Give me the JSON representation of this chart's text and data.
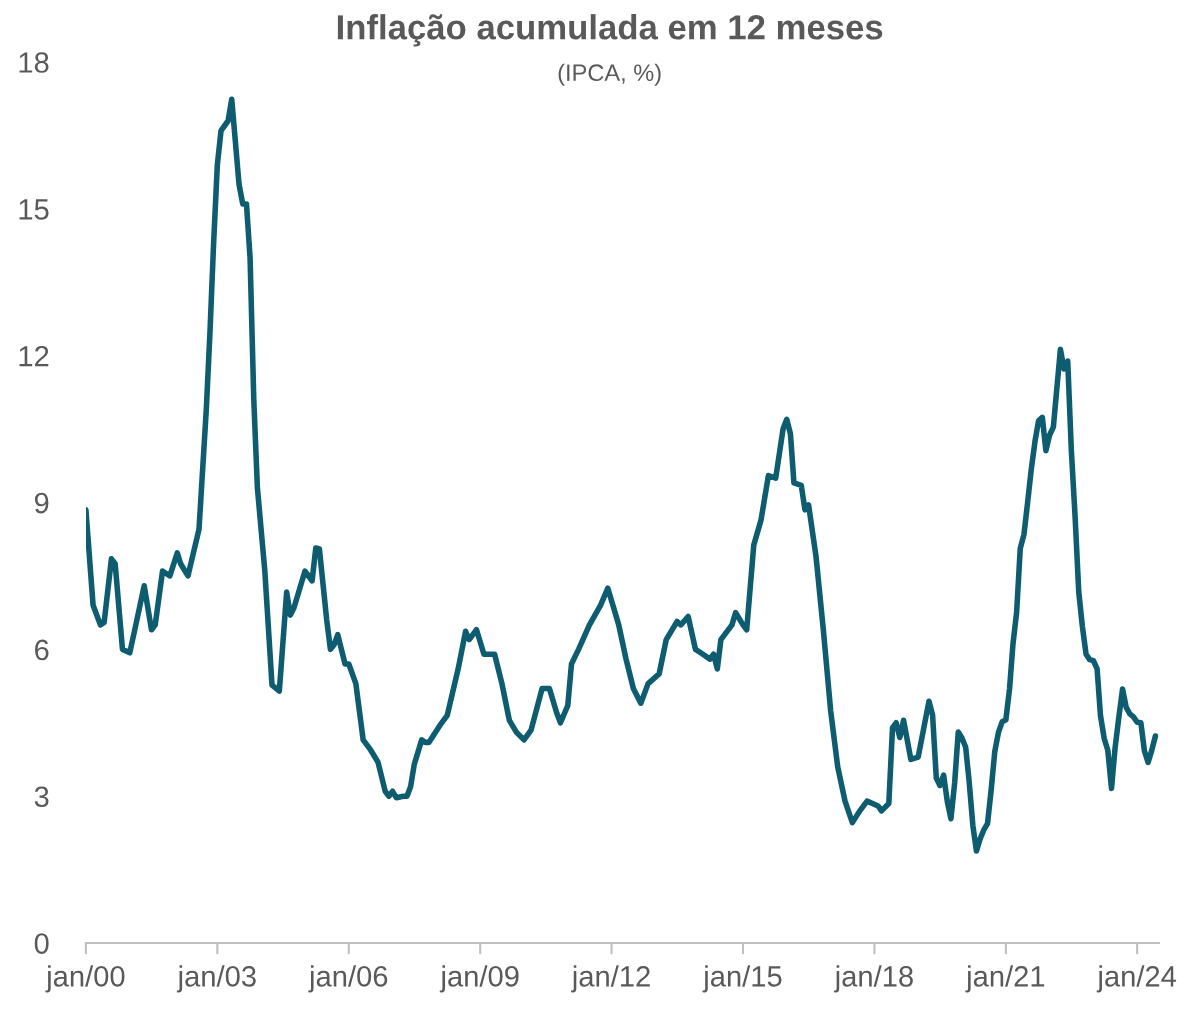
{
  "chart_data": {
    "type": "line",
    "title": "Inflação acumulada em 12 meses",
    "subtitle": "(IPCA, %)",
    "x": [
      "2000-01",
      "2000-03",
      "2000-05",
      "2000-06",
      "2000-08",
      "2000-09",
      "2000-11",
      "2001-01",
      "2001-03",
      "2001-05",
      "2001-07",
      "2001-08",
      "2001-10",
      "2001-12",
      "2002-02",
      "2002-03",
      "2002-05",
      "2002-08",
      "2002-10",
      "2002-11",
      "2002-12",
      "2003-01",
      "2003-02",
      "2003-04",
      "2003-05",
      "2003-07",
      "2003-08",
      "2003-09",
      "2003-10",
      "2003-11",
      "2003-12",
      "2004-02",
      "2004-04",
      "2004-06",
      "2004-08",
      "2004-09",
      "2004-10",
      "2005-01",
      "2005-03",
      "2005-04",
      "2005-05",
      "2005-07",
      "2005-08",
      "2005-09",
      "2005-10",
      "2005-12",
      "2006-01",
      "2006-03",
      "2006-05",
      "2006-07",
      "2006-09",
      "2006-11",
      "2006-12",
      "2007-01",
      "2007-02",
      "2007-04",
      "2007-05",
      "2007-06",
      "2007-07",
      "2007-09",
      "2007-10",
      "2007-11",
      "2008-02",
      "2008-04",
      "2008-07",
      "2008-09",
      "2008-10",
      "2008-12",
      "2009-02",
      "2009-03",
      "2009-05",
      "2009-07",
      "2009-09",
      "2009-11",
      "2010-01",
      "2010-03",
      "2010-06",
      "2010-08",
      "2010-10",
      "2010-11",
      "2011-01",
      "2011-02",
      "2011-04",
      "2011-07",
      "2011-10",
      "2011-12",
      "2012-03",
      "2012-05",
      "2012-07",
      "2012-09",
      "2012-11",
      "2013-02",
      "2013-04",
      "2013-07",
      "2013-08",
      "2013-10",
      "2013-12",
      "2014-02",
      "2014-04",
      "2014-05",
      "2014-06",
      "2014-07",
      "2014-10",
      "2014-11",
      "2015-01",
      "2015-02",
      "2015-04",
      "2015-06",
      "2015-08",
      "2015-10",
      "2015-12",
      "2016-01",
      "2016-02",
      "2016-03",
      "2016-05",
      "2016-06",
      "2016-07",
      "2016-09",
      "2016-11",
      "2017-01",
      "2017-03",
      "2017-05",
      "2017-07",
      "2017-09",
      "2017-11",
      "2018-02",
      "2018-03",
      "2018-05",
      "2018-06",
      "2018-07",
      "2018-08",
      "2018-09",
      "2018-11",
      "2019-01",
      "2019-04",
      "2019-05",
      "2019-06",
      "2019-07",
      "2019-08",
      "2019-09",
      "2019-10",
      "2019-11",
      "2019-12",
      "2020-01",
      "2020-02",
      "2020-03",
      "2020-04",
      "2020-05",
      "2020-06",
      "2020-07",
      "2020-08",
      "2020-09",
      "2020-10",
      "2020-11",
      "2020-12",
      "2021-01",
      "2021-02",
      "2021-03",
      "2021-04",
      "2021-05",
      "2021-06",
      "2021-07",
      "2021-08",
      "2021-09",
      "2021-10",
      "2021-11",
      "2021-12",
      "2022-01",
      "2022-02",
      "2022-03",
      "2022-04",
      "2022-05",
      "2022-06",
      "2022-07",
      "2022-08",
      "2022-09",
      "2022-10",
      "2022-11",
      "2022-12",
      "2023-01",
      "2023-02",
      "2023-03",
      "2023-04",
      "2023-05",
      "2023-06",
      "2023-07",
      "2023-08",
      "2023-09",
      "2023-10",
      "2023-11",
      "2023-12",
      "2024-01",
      "2024-02",
      "2024-03",
      "2024-04",
      "2024-05",
      "2024-06"
    ],
    "series": [
      {
        "color": "#0d5c70",
        "values": [
          8.85,
          6.9,
          6.5,
          6.55,
          7.85,
          7.75,
          6.0,
          5.93,
          6.6,
          7.3,
          6.4,
          6.5,
          7.6,
          7.5,
          7.97,
          7.75,
          7.5,
          8.45,
          10.9,
          12.5,
          14.3,
          15.9,
          16.6,
          16.8,
          17.24,
          15.5,
          15.1,
          15.1,
          14.0,
          11.1,
          9.3,
          7.6,
          5.27,
          5.15,
          7.17,
          6.7,
          6.85,
          7.6,
          7.4,
          8.07,
          8.05,
          6.6,
          6.0,
          6.1,
          6.3,
          5.7,
          5.7,
          5.3,
          4.15,
          3.95,
          3.7,
          3.1,
          3.0,
          3.1,
          2.97,
          3.0,
          3.0,
          3.2,
          3.65,
          4.15,
          4.1,
          4.1,
          4.45,
          4.65,
          5.6,
          6.37,
          6.2,
          6.4,
          5.9,
          5.9,
          5.9,
          5.3,
          4.55,
          4.3,
          4.15,
          4.35,
          5.2,
          5.2,
          4.7,
          4.5,
          4.85,
          5.7,
          6.0,
          6.5,
          6.9,
          7.25,
          6.5,
          5.8,
          5.2,
          4.9,
          5.3,
          5.5,
          6.2,
          6.57,
          6.5,
          6.67,
          6.0,
          5.9,
          5.8,
          5.9,
          5.6,
          6.2,
          6.5,
          6.75,
          6.5,
          6.4,
          8.13,
          8.65,
          9.55,
          9.5,
          10.5,
          10.7,
          10.4,
          9.4,
          9.35,
          8.85,
          8.95,
          7.9,
          6.4,
          4.75,
          3.6,
          2.9,
          2.46,
          2.7,
          2.9,
          2.8,
          2.7,
          2.85,
          4.4,
          4.5,
          4.2,
          4.55,
          3.75,
          3.8,
          4.94,
          4.66,
          3.37,
          3.22,
          3.43,
          2.89,
          2.54,
          3.27,
          4.31,
          4.19,
          4.0,
          3.3,
          2.4,
          1.88,
          2.13,
          2.31,
          2.44,
          3.14,
          3.92,
          4.31,
          4.52,
          4.56,
          5.2,
          6.1,
          6.76,
          8.06,
          8.35,
          8.99,
          9.68,
          10.25,
          10.67,
          10.74,
          10.06,
          10.38,
          10.54,
          11.3,
          12.13,
          11.73,
          11.89,
          10.07,
          8.73,
          7.17,
          6.47,
          5.9,
          5.79,
          5.77,
          5.6,
          4.65,
          4.18,
          3.94,
          3.16,
          3.99,
          4.61,
          5.19,
          4.82,
          4.68,
          4.62,
          4.51,
          4.5,
          3.93,
          3.69,
          3.93,
          4.23
        ]
      }
    ],
    "xlim": [
      "2000-01",
      "2024-07"
    ],
    "xticks": [
      {
        "value": "2000-01",
        "label": "jan/00"
      },
      {
        "value": "2003-01",
        "label": "jan/03"
      },
      {
        "value": "2006-01",
        "label": "jan/06"
      },
      {
        "value": "2009-01",
        "label": "jan/09"
      },
      {
        "value": "2012-01",
        "label": "jan/12"
      },
      {
        "value": "2015-01",
        "label": "jan/15"
      },
      {
        "value": "2018-01",
        "label": "jan/18"
      },
      {
        "value": "2021-01",
        "label": "jan/21"
      },
      {
        "value": "2024-01",
        "label": "jan/24"
      }
    ],
    "ylim": [
      0,
      18
    ],
    "yticks": [
      0,
      3,
      6,
      9,
      12,
      15,
      18
    ],
    "grid": false,
    "marker": "none",
    "line_style": "solid"
  }
}
